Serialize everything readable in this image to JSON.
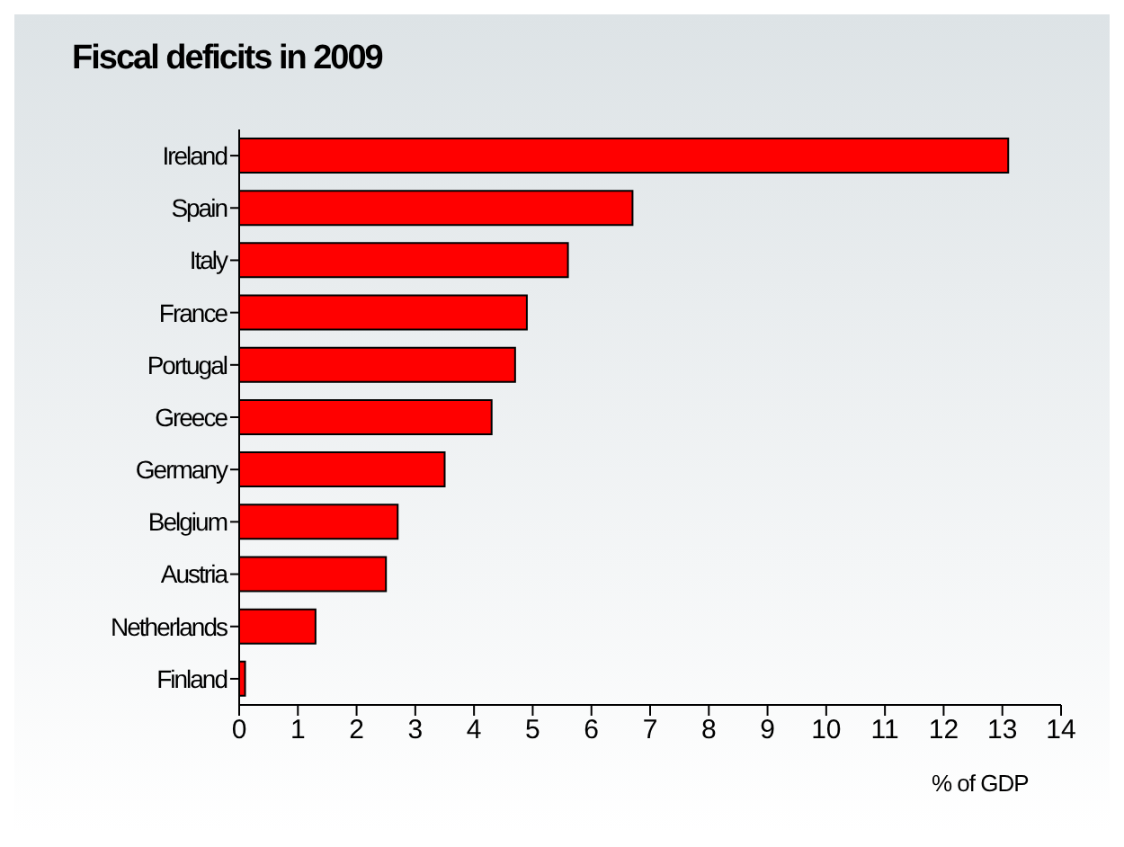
{
  "chart_data": {
    "type": "bar",
    "orientation": "horizontal",
    "title": "Fiscal deficits in 2009",
    "xlabel": "% of GDP",
    "categories": [
      "Ireland",
      "Spain",
      "Italy",
      "France",
      "Portugal",
      "Greece",
      "Germany",
      "Belgium",
      "Austria",
      "Netherlands",
      "Finland"
    ],
    "values": [
      13.1,
      6.7,
      5.6,
      4.9,
      4.7,
      4.3,
      3.5,
      2.7,
      2.5,
      1.3,
      0.1
    ],
    "color": "#ff0000",
    "xlim": [
      0,
      14
    ],
    "xticks": [
      0,
      1,
      2,
      3,
      4,
      5,
      6,
      7,
      8,
      9,
      10,
      11,
      12,
      13,
      14
    ],
    "grid": false,
    "legend": false
  }
}
